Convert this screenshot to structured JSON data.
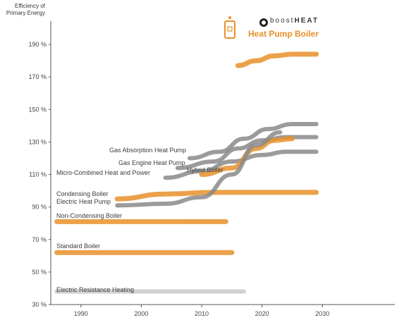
{
  "chart_data": {
    "type": "line",
    "ylabel": "Efficiency of Primary Energy",
    "y_ticks": [
      "30 %",
      "50 %",
      "70 %",
      "90 %",
      "110 %",
      "130 %",
      "150 %",
      "170 %",
      "190 %"
    ],
    "x_ticks": [
      "1990",
      "2000",
      "2010",
      "2020",
      "2030"
    ],
    "xlim": [
      1985,
      2042
    ],
    "ylim": [
      30,
      200
    ],
    "y_tick_values": [
      30,
      50,
      70,
      90,
      110,
      130,
      150,
      170,
      190
    ],
    "x_tick_values": [
      1990,
      2000,
      2010,
      2020,
      2030
    ],
    "grid": false,
    "series": [
      {
        "name": "Heat Pump Boiler",
        "color": "#e8902a",
        "x": [
          2016,
          2019,
          2022,
          2025,
          2029
        ],
        "y": [
          177,
          180,
          183,
          184,
          184
        ]
      },
      {
        "name": "Gas Absorption Heat Pump",
        "color": "#8a8a8a",
        "x": [
          2008,
          2013,
          2017,
          2021,
          2025,
          2029
        ],
        "y": [
          120,
          124,
          132,
          138,
          141,
          141
        ]
      },
      {
        "name": "Gas Engine Heat Pump",
        "color": "#8a8a8a",
        "x": [
          2006,
          2012,
          2016,
          2020,
          2024,
          2029
        ],
        "y": [
          114,
          118,
          126,
          131,
          133,
          133
        ]
      },
      {
        "name": "Micro-Combined Heat and Power",
        "color": "#8a8a8a",
        "x": [
          2004,
          2010,
          2015,
          2020,
          2024,
          2029
        ],
        "y": [
          108,
          112,
          118,
          122,
          124,
          124
        ]
      },
      {
        "name": "Hybrid Boiler",
        "color": "#e8902a",
        "x": [
          2010,
          2015,
          2019,
          2022,
          2025
        ],
        "y": [
          110,
          114,
          126,
          131,
          132
        ]
      },
      {
        "name": "Condensing Boiler",
        "color": "#e8902a",
        "x": [
          1996,
          2004,
          2012,
          2020,
          2029
        ],
        "y": [
          95,
          98,
          99,
          99,
          99
        ]
      },
      {
        "name": "Electric Heat Pump",
        "color": "#8a8a8a",
        "x": [
          1996,
          2004,
          2010,
          2015,
          2019,
          2023
        ],
        "y": [
          91,
          92,
          96,
          110,
          128,
          136
        ]
      },
      {
        "name": "Non-Condensing Boiler",
        "color": "#e8902a",
        "x": [
          1986,
          1995,
          2005,
          2014
        ],
        "y": [
          81,
          81,
          81,
          81
        ]
      },
      {
        "name": "Standard Boiler",
        "color": "#e8902a",
        "x": [
          1986,
          1995,
          2005,
          2015
        ],
        "y": [
          62,
          62,
          62,
          62
        ]
      },
      {
        "name": "Electric Resistance Heating",
        "color": "#c8c8c8",
        "x": [
          1986,
          1995,
          2005,
          2014,
          2017
        ],
        "y": [
          38,
          38,
          38,
          38,
          38
        ]
      }
    ]
  },
  "logo": {
    "brand_prefix": "boost",
    "brand_suffix": "HEAT",
    "title": "Heat Pump Boiler",
    "accent_color": "#e8902a"
  }
}
